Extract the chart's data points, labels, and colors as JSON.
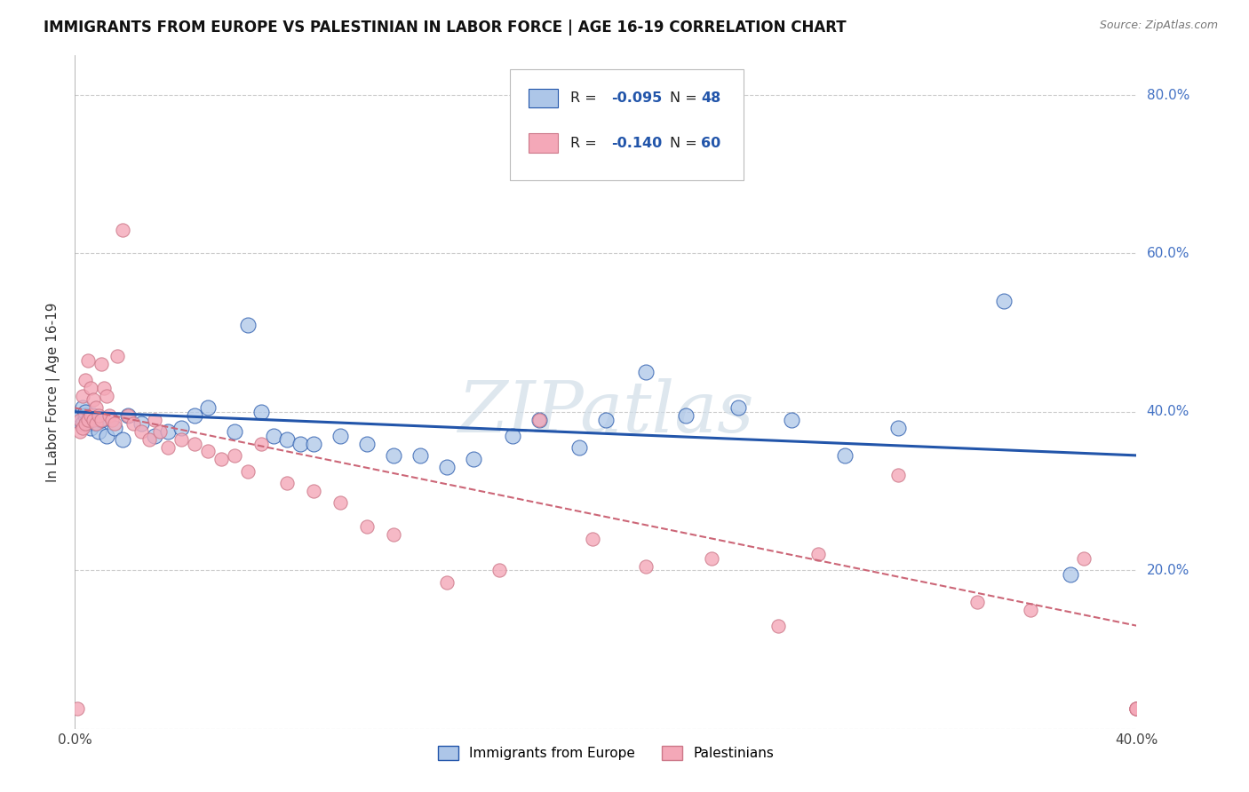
{
  "title": "IMMIGRANTS FROM EUROPE VS PALESTINIAN IN LABOR FORCE | AGE 16-19 CORRELATION CHART",
  "source": "Source: ZipAtlas.com",
  "ylabel": "In Labor Force | Age 16-19",
  "x_min": 0.0,
  "x_max": 0.4,
  "y_min": 0.0,
  "y_max": 0.85,
  "x_ticks": [
    0.0,
    0.05,
    0.1,
    0.15,
    0.2,
    0.25,
    0.3,
    0.35,
    0.4
  ],
  "x_tick_labels_show": [
    "0.0%",
    "40.0%"
  ],
  "y_ticks": [
    0.0,
    0.2,
    0.4,
    0.6,
    0.8
  ],
  "y_tick_labels": [
    "",
    "20.0%",
    "40.0%",
    "60.0%",
    "80.0%"
  ],
  "color_europe": "#adc6e8",
  "color_palestinian": "#f4a8b8",
  "line_color_europe": "#2255aa",
  "line_color_palestinian": "#cc6677",
  "watermark": "ZIPatlas",
  "europe_x": [
    0.001,
    0.002,
    0.003,
    0.003,
    0.004,
    0.004,
    0.005,
    0.005,
    0.006,
    0.007,
    0.008,
    0.009,
    0.01,
    0.012,
    0.015,
    0.018,
    0.02,
    0.025,
    0.03,
    0.035,
    0.04,
    0.045,
    0.05,
    0.06,
    0.065,
    0.07,
    0.075,
    0.08,
    0.085,
    0.09,
    0.1,
    0.11,
    0.12,
    0.13,
    0.14,
    0.15,
    0.165,
    0.175,
    0.19,
    0.2,
    0.215,
    0.23,
    0.25,
    0.27,
    0.29,
    0.31,
    0.35,
    0.375
  ],
  "europe_y": [
    0.39,
    0.395,
    0.385,
    0.405,
    0.395,
    0.4,
    0.385,
    0.39,
    0.38,
    0.395,
    0.385,
    0.375,
    0.39,
    0.37,
    0.38,
    0.365,
    0.395,
    0.385,
    0.37,
    0.375,
    0.38,
    0.395,
    0.405,
    0.375,
    0.51,
    0.4,
    0.37,
    0.365,
    0.36,
    0.36,
    0.37,
    0.36,
    0.345,
    0.345,
    0.33,
    0.34,
    0.37,
    0.39,
    0.355,
    0.39,
    0.45,
    0.395,
    0.405,
    0.39,
    0.345,
    0.38,
    0.54,
    0.195
  ],
  "palestine_x": [
    0.001,
    0.002,
    0.002,
    0.003,
    0.003,
    0.004,
    0.004,
    0.005,
    0.005,
    0.006,
    0.006,
    0.007,
    0.007,
    0.008,
    0.008,
    0.009,
    0.01,
    0.01,
    0.011,
    0.012,
    0.013,
    0.014,
    0.015,
    0.016,
    0.018,
    0.02,
    0.022,
    0.025,
    0.028,
    0.03,
    0.032,
    0.035,
    0.04,
    0.045,
    0.05,
    0.055,
    0.06,
    0.065,
    0.07,
    0.08,
    0.09,
    0.1,
    0.11,
    0.12,
    0.14,
    0.16,
    0.175,
    0.195,
    0.215,
    0.24,
    0.265,
    0.28,
    0.31,
    0.34,
    0.36,
    0.38,
    0.4,
    0.4,
    0.4,
    0.4
  ],
  "palestine_y": [
    0.025,
    0.39,
    0.375,
    0.38,
    0.42,
    0.385,
    0.44,
    0.39,
    0.465,
    0.395,
    0.43,
    0.39,
    0.415,
    0.385,
    0.405,
    0.395,
    0.39,
    0.46,
    0.43,
    0.42,
    0.395,
    0.39,
    0.385,
    0.47,
    0.63,
    0.395,
    0.385,
    0.375,
    0.365,
    0.39,
    0.375,
    0.355,
    0.365,
    0.36,
    0.35,
    0.34,
    0.345,
    0.325,
    0.36,
    0.31,
    0.3,
    0.285,
    0.255,
    0.245,
    0.185,
    0.2,
    0.39,
    0.24,
    0.205,
    0.215,
    0.13,
    0.22,
    0.32,
    0.16,
    0.15,
    0.215,
    0.025,
    0.025,
    0.025,
    0.025
  ],
  "eur_trend_x0": 0.0,
  "eur_trend_y0": 0.4,
  "eur_trend_x1": 0.4,
  "eur_trend_y1": 0.345,
  "pal_trend_x0": 0.0,
  "pal_trend_y0": 0.405,
  "pal_trend_x1": 0.4,
  "pal_trend_y1": 0.13
}
